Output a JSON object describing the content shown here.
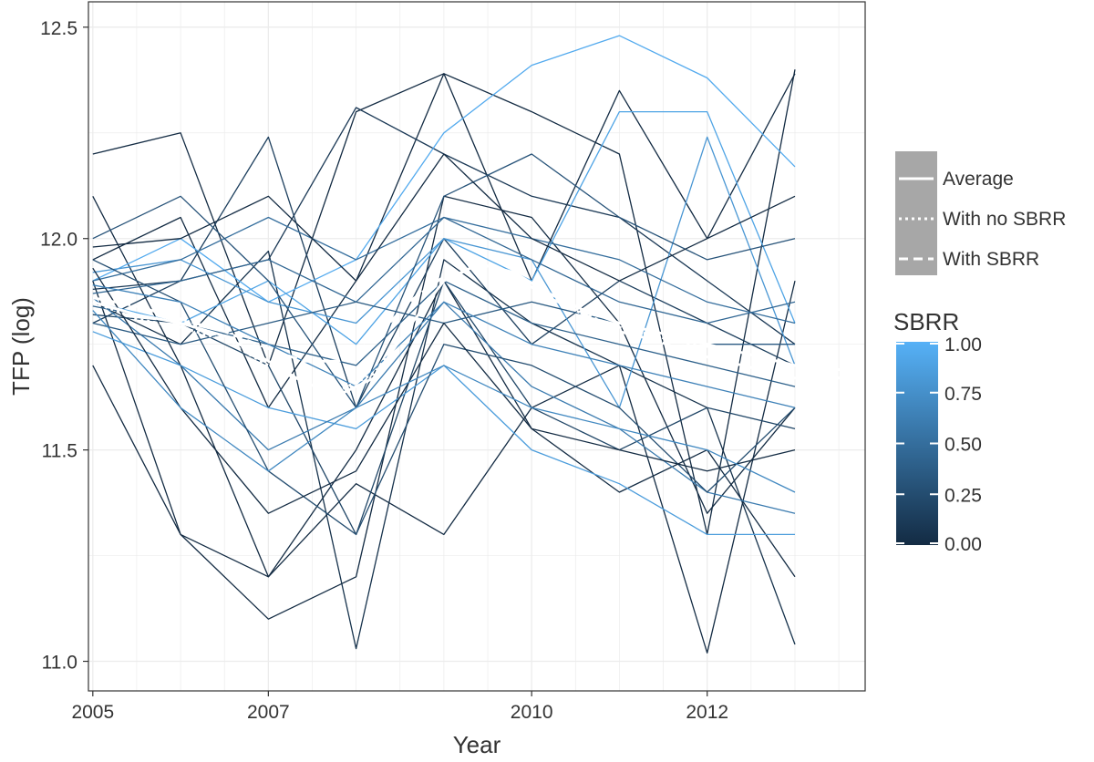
{
  "chart_data": {
    "type": "line",
    "title": "",
    "xlabel": "Year",
    "ylabel": "TFP (log)",
    "xlim": [
      2004.95,
      2013.8
    ],
    "ylim": [
      10.93,
      12.56
    ],
    "x_ticks": [
      {
        "value": 2005,
        "label": "2005"
      },
      {
        "value": 2007,
        "label": "2007"
      },
      {
        "value": 2010,
        "label": "2010"
      },
      {
        "value": 2012,
        "label": "2012"
      }
    ],
    "y_ticks": [
      {
        "value": 11.0,
        "label": "11.0"
      },
      {
        "value": 11.5,
        "label": "11.5"
      },
      {
        "value": 12.0,
        "label": "12.0"
      },
      {
        "value": 12.5,
        "label": "12.5"
      }
    ],
    "grid": true,
    "background": "#ffffff",
    "grid_color": "#ececec",
    "colorbar": {
      "title": "SBRR",
      "range": [
        0,
        1
      ],
      "ticks": [
        {
          "value": 1.0,
          "label": "1.00"
        },
        {
          "value": 0.75,
          "label": "0.75"
        },
        {
          "value": 0.5,
          "label": "0.50"
        },
        {
          "value": 0.25,
          "label": "0.25"
        },
        {
          "value": 0.0,
          "label": "0.00"
        }
      ],
      "color_low": "#132b43",
      "color_high": "#56b1f7"
    },
    "legend": {
      "placement": "right",
      "entries": [
        {
          "name": "Average",
          "dash": "solid"
        },
        {
          "name": "With no SBRR",
          "dash": "dotted"
        },
        {
          "name": "With SBRR",
          "dash": "dashed"
        }
      ]
    },
    "summary_series": [
      {
        "name": "Average",
        "color": "#ffffff",
        "dash": "solid",
        "x": [
          2005,
          2005.5,
          2006,
          2006.5,
          2007,
          2007.4,
          2007.8,
          2008.2,
          2008.6,
          2009,
          2009.4,
          2009.8,
          2010.2,
          2010.6,
          2011,
          2011.4,
          2011.8,
          2012.2,
          2012.6,
          2013,
          2013.4,
          2013.8
        ],
        "y": [
          11.85,
          11.82,
          11.8,
          11.77,
          11.71,
          11.66,
          11.63,
          11.67,
          11.79,
          11.9,
          11.94,
          11.92,
          11.87,
          11.83,
          11.8,
          11.78,
          11.76,
          11.74,
          11.72,
          11.7,
          11.69,
          11.69
        ]
      },
      {
        "name": "With no SBRR",
        "color": "#ffffff",
        "dash": "dotted",
        "x": [
          2005,
          2005.5,
          2006,
          2006.5,
          2007,
          2007.4,
          2007.8,
          2008.2,
          2008.6,
          2009,
          2009.4,
          2009.8,
          2010.2,
          2010.6,
          2011,
          2011.4,
          2011.8,
          2012.2,
          2012.6,
          2013,
          2013.4,
          2013.8
        ],
        "y": [
          11.85,
          11.81,
          11.79,
          11.76,
          11.7,
          11.66,
          11.64,
          11.68,
          11.79,
          11.9,
          11.94,
          11.92,
          11.86,
          11.82,
          11.79,
          11.77,
          11.75,
          11.74,
          11.72,
          11.7,
          11.69,
          11.69
        ]
      },
      {
        "name": "With SBRR",
        "color": "#ffffff",
        "dash": "dashed",
        "x": [
          2005,
          2005.5,
          2006,
          2006.5,
          2007,
          2007.4,
          2007.8,
          2008.2,
          2008.6,
          2009,
          2009.4,
          2009.8,
          2010.2,
          2010.6,
          2011,
          2011.4,
          2011.8,
          2012.2,
          2012.6,
          2013,
          2013.4,
          2013.8
        ],
        "y": [
          11.86,
          11.84,
          11.81,
          11.78,
          11.74,
          11.71,
          11.71,
          11.76,
          11.85,
          11.91,
          11.93,
          11.91,
          11.86,
          11.82,
          11.78,
          11.76,
          11.73,
          11.71,
          11.69,
          11.67,
          11.67,
          11.67
        ]
      }
    ],
    "firm_series": [
      {
        "x": [
          2005,
          2006,
          2007,
          2008,
          2009,
          2010,
          2011,
          2012,
          2013
        ],
        "y": [
          12.2,
          12.25,
          11.7,
          12.3,
          12.39,
          11.9,
          12.35,
          12.0,
          12.39
        ],
        "sbrr": 0.0
      },
      {
        "x": [
          2005,
          2006,
          2007,
          2008,
          2009,
          2010,
          2011,
          2012,
          2013
        ],
        "y": [
          11.9,
          11.3,
          11.1,
          11.2,
          12.1,
          12.05,
          11.8,
          11.35,
          11.6
        ],
        "sbrr": 0.0
      },
      {
        "x": [
          2005,
          2006,
          2007,
          2008,
          2009,
          2010,
          2011,
          2012,
          2013
        ],
        "y": [
          11.85,
          11.75,
          11.97,
          11.03,
          11.95,
          11.8,
          11.7,
          11.6,
          11.04
        ],
        "sbrr": 0.05
      },
      {
        "x": [
          2005,
          2006,
          2007,
          2008,
          2009,
          2010,
          2011,
          2012,
          2013
        ],
        "y": [
          11.95,
          12.05,
          11.6,
          11.9,
          12.39,
          12.3,
          12.2,
          11.3,
          12.4
        ],
        "sbrr": 0.0
      },
      {
        "x": [
          2005,
          2006,
          2007,
          2008,
          2009,
          2010,
          2011,
          2012,
          2013
        ],
        "y": [
          11.7,
          11.3,
          11.2,
          11.42,
          11.3,
          11.6,
          11.7,
          11.02,
          11.9
        ],
        "sbrr": 0.0
      },
      {
        "x": [
          2005,
          2006,
          2007,
          2008,
          2009,
          2010,
          2011,
          2012,
          2013
        ],
        "y": [
          11.8,
          11.9,
          12.24,
          11.6,
          12.0,
          11.75,
          11.9,
          11.8,
          11.7
        ],
        "sbrr": 0.15
      },
      {
        "x": [
          2005,
          2006,
          2007,
          2008,
          2009,
          2010,
          2011,
          2012,
          2013
        ],
        "y": [
          12.1,
          11.7,
          11.2,
          11.5,
          11.9,
          11.55,
          11.4,
          11.5,
          11.2
        ],
        "sbrr": 0.0
      },
      {
        "x": [
          2005,
          2006,
          2007,
          2008,
          2009,
          2010,
          2011,
          2012,
          2013
        ],
        "y": [
          11.88,
          11.9,
          11.95,
          12.31,
          12.2,
          12.1,
          12.05,
          11.9,
          11.75
        ],
        "sbrr": 0.1
      },
      {
        "x": [
          2005,
          2006,
          2007,
          2008,
          2009,
          2010,
          2011,
          2012,
          2013
        ],
        "y": [
          11.82,
          11.8,
          11.7,
          11.3,
          11.9,
          11.6,
          11.5,
          11.6,
          11.55
        ],
        "sbrr": 0.2
      },
      {
        "x": [
          2005,
          2006,
          2007,
          2008,
          2009,
          2010,
          2011,
          2012,
          2013
        ],
        "y": [
          11.9,
          12.0,
          11.85,
          11.95,
          12.25,
          12.41,
          12.48,
          12.38,
          12.17
        ],
        "sbrr": 0.95
      },
      {
        "x": [
          2005,
          2006,
          2007,
          2008,
          2009,
          2010,
          2011,
          2012,
          2013
        ],
        "y": [
          11.85,
          11.8,
          11.9,
          11.75,
          12.0,
          11.9,
          12.3,
          12.3,
          11.8
        ],
        "sbrr": 0.9
      },
      {
        "x": [
          2005,
          2006,
          2007,
          2008,
          2009,
          2010,
          2011,
          2012,
          2013
        ],
        "y": [
          11.78,
          11.7,
          11.6,
          11.55,
          11.7,
          11.5,
          11.42,
          11.3,
          11.3
        ],
        "sbrr": 0.85
      },
      {
        "x": [
          2005,
          2006,
          2007,
          2008,
          2009,
          2010,
          2011,
          2012,
          2013
        ],
        "y": [
          11.92,
          11.95,
          11.85,
          11.8,
          12.0,
          11.95,
          11.6,
          12.24,
          11.7
        ],
        "sbrr": 0.8
      },
      {
        "x": [
          2005,
          2006,
          2007,
          2008,
          2009,
          2010,
          2011,
          2012,
          2013
        ],
        "y": [
          11.86,
          11.7,
          11.5,
          11.6,
          11.85,
          11.65,
          11.55,
          11.4,
          11.35
        ],
        "sbrr": 0.6
      },
      {
        "x": [
          2005,
          2006,
          2007,
          2008,
          2009,
          2010,
          2011,
          2012,
          2013
        ],
        "y": [
          11.9,
          11.95,
          12.05,
          11.95,
          12.05,
          12.0,
          11.95,
          11.85,
          11.8
        ],
        "sbrr": 0.5
      },
      {
        "x": [
          2005,
          2006,
          2007,
          2008,
          2009,
          2010,
          2011,
          2012,
          2013
        ],
        "y": [
          11.84,
          11.8,
          11.75,
          11.7,
          11.9,
          11.8,
          11.75,
          11.7,
          11.65
        ],
        "sbrr": 0.4
      },
      {
        "x": [
          2005,
          2006,
          2007,
          2008,
          2009,
          2010,
          2011,
          2012,
          2013
        ],
        "y": [
          12.0,
          12.1,
          11.9,
          11.6,
          12.1,
          12.2,
          12.05,
          11.95,
          12.0
        ],
        "sbrr": 0.3
      },
      {
        "x": [
          2005,
          2006,
          2007,
          2008,
          2009,
          2010,
          2011,
          2012,
          2013
        ],
        "y": [
          11.95,
          11.85,
          11.45,
          11.3,
          11.75,
          11.7,
          11.6,
          11.4,
          11.6
        ],
        "sbrr": 0.25
      },
      {
        "x": [
          2005,
          2006,
          2007,
          2008,
          2009,
          2010,
          2011,
          2012,
          2013
        ],
        "y": [
          11.8,
          11.75,
          11.8,
          11.85,
          11.8,
          11.85,
          11.8,
          11.75,
          11.75
        ],
        "sbrr": 0.35
      },
      {
        "x": [
          2005,
          2006,
          2007,
          2008,
          2009,
          2010,
          2011,
          2012,
          2013
        ],
        "y": [
          11.87,
          11.9,
          11.95,
          11.85,
          12.05,
          11.95,
          11.85,
          11.8,
          11.85
        ],
        "sbrr": 0.45
      },
      {
        "x": [
          2005,
          2006,
          2007,
          2008,
          2009,
          2010,
          2011,
          2012,
          2013
        ],
        "y": [
          11.93,
          11.6,
          11.35,
          11.45,
          11.8,
          11.55,
          11.5,
          11.45,
          11.5
        ],
        "sbrr": 0.0
      },
      {
        "x": [
          2005,
          2006,
          2007,
          2008,
          2009,
          2010,
          2011,
          2012,
          2013
        ],
        "y": [
          11.98,
          12.0,
          12.1,
          11.9,
          12.2,
          12.0,
          11.9,
          12.0,
          12.1
        ],
        "sbrr": 0.0
      },
      {
        "x": [
          2005,
          2006,
          2007,
          2008,
          2009,
          2010,
          2011,
          2012,
          2013
        ],
        "y": [
          11.83,
          11.6,
          11.45,
          11.6,
          11.7,
          11.6,
          11.55,
          11.5,
          11.4
        ],
        "sbrr": 0.7
      },
      {
        "x": [
          2005,
          2006,
          2007,
          2008,
          2009,
          2010,
          2011,
          2012,
          2013
        ],
        "y": [
          11.89,
          11.85,
          11.75,
          11.65,
          11.85,
          11.75,
          11.7,
          11.65,
          11.6
        ],
        "sbrr": 0.65
      }
    ]
  }
}
